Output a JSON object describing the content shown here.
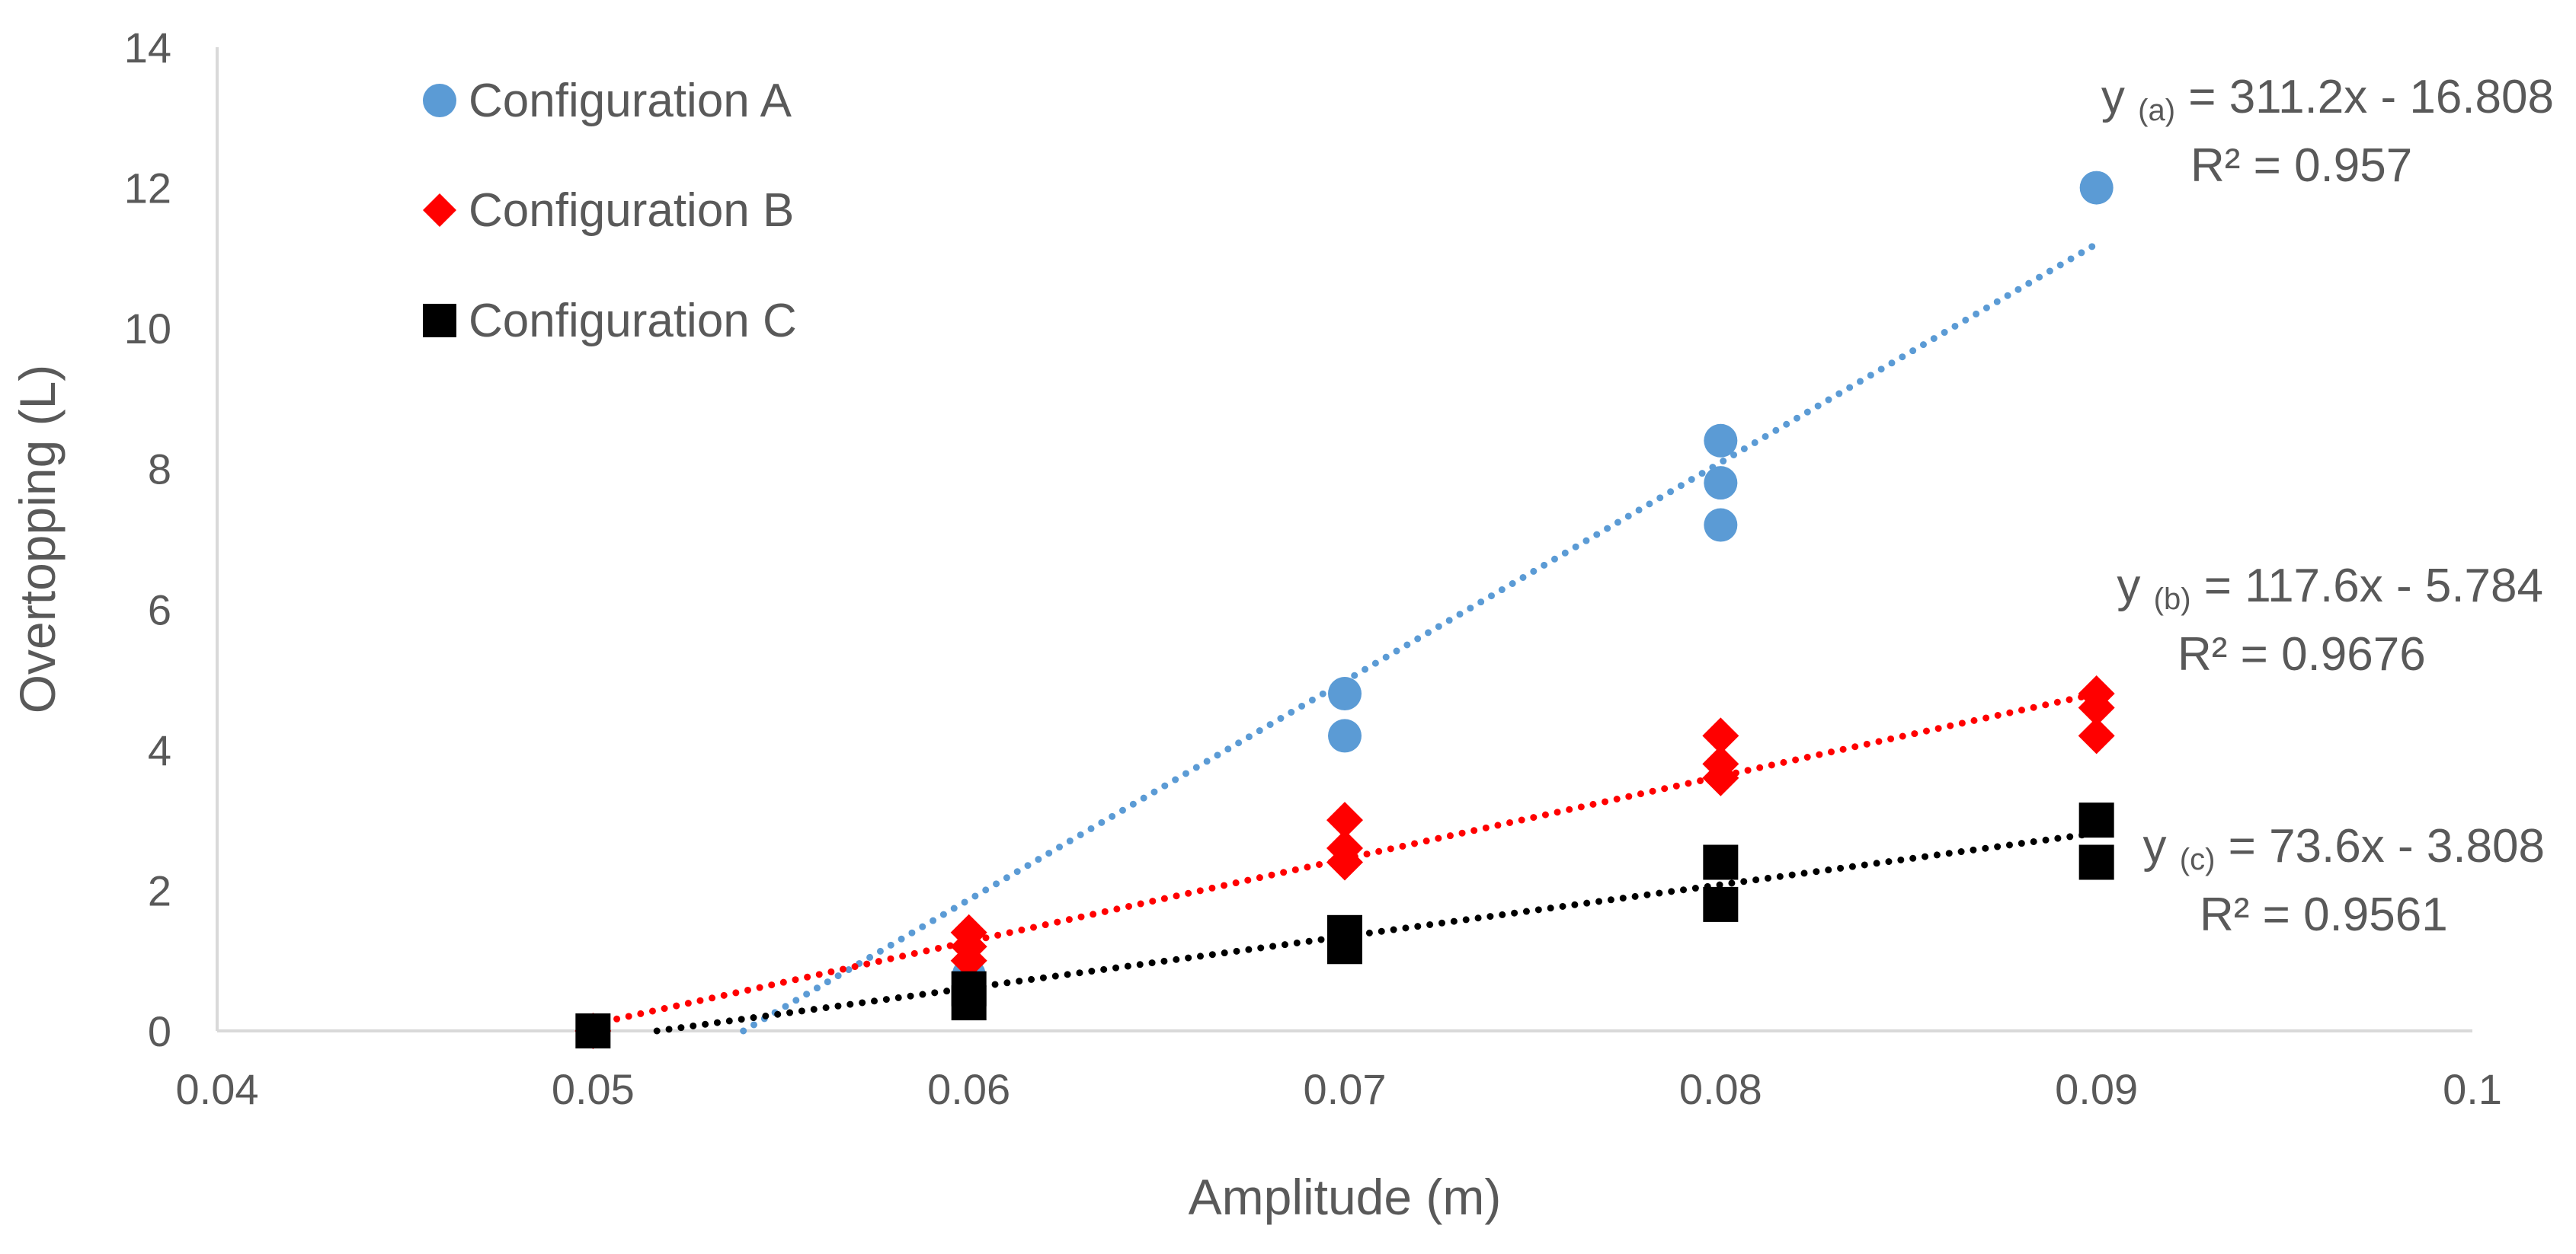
{
  "chart_data": {
    "type": "scatter",
    "title": "",
    "xlabel": "Amplitude (m)",
    "ylabel": "Overtopping (L)",
    "xlim": [
      0.04,
      0.1
    ],
    "ylim": [
      0,
      14
    ],
    "xticks": [
      0.04,
      0.05,
      0.06,
      0.07,
      0.08,
      0.09,
      0.1
    ],
    "xtick_labels": [
      "0.04",
      "0.05",
      "0.06",
      "0.07",
      "0.08",
      "0.09",
      "0.1"
    ],
    "yticks": [
      0,
      2,
      4,
      6,
      8,
      10,
      12,
      14
    ],
    "ytick_labels": [
      "0",
      "2",
      "4",
      "6",
      "8",
      "10",
      "12",
      "14"
    ],
    "grid": false,
    "legend_position": "top-left",
    "series": [
      {
        "name": "Configuration A",
        "marker": "circle",
        "color": "#5b9bd5",
        "points": [
          {
            "x": 0.05,
            "y": 0
          },
          {
            "x": 0.06,
            "y": 0.8
          },
          {
            "x": 0.06,
            "y": 0.6
          },
          {
            "x": 0.07,
            "y": 4.8
          },
          {
            "x": 0.07,
            "y": 4.2
          },
          {
            "x": 0.08,
            "y": 8.4
          },
          {
            "x": 0.08,
            "y": 7.8
          },
          {
            "x": 0.08,
            "y": 7.2
          },
          {
            "x": 0.09,
            "y": 12
          }
        ],
        "trendline": {
          "slope": 311.2,
          "intercept": -16.808,
          "x_range": [
            0.054,
            0.09
          ],
          "equation_label": "y",
          "equation_subscript": "(a)",
          "equation_rest": " = 311.2x - 16.808",
          "r2_label": "R² = 0.957"
        }
      },
      {
        "name": "Configuration B",
        "marker": "diamond",
        "color": "#ff0000",
        "points": [
          {
            "x": 0.05,
            "y": 0
          },
          {
            "x": 0.06,
            "y": 1.4
          },
          {
            "x": 0.06,
            "y": 1.2
          },
          {
            "x": 0.06,
            "y": 1.0
          },
          {
            "x": 0.07,
            "y": 3.0
          },
          {
            "x": 0.07,
            "y": 2.6
          },
          {
            "x": 0.07,
            "y": 2.4
          },
          {
            "x": 0.08,
            "y": 4.2
          },
          {
            "x": 0.08,
            "y": 3.8
          },
          {
            "x": 0.08,
            "y": 3.6
          },
          {
            "x": 0.09,
            "y": 4.8
          },
          {
            "x": 0.09,
            "y": 4.6
          },
          {
            "x": 0.09,
            "y": 4.2
          }
        ],
        "trendline": {
          "slope": 117.6,
          "intercept": -5.784,
          "x_range": [
            0.05,
            0.09
          ],
          "equation_label": "y",
          "equation_subscript": "(b)",
          "equation_rest": " = 117.6x - 5.784",
          "r2_label": "R² = 0.9676"
        }
      },
      {
        "name": "Configuration C",
        "marker": "square",
        "color": "#000000",
        "points": [
          {
            "x": 0.05,
            "y": 0
          },
          {
            "x": 0.06,
            "y": 0.6
          },
          {
            "x": 0.06,
            "y": 0.4
          },
          {
            "x": 0.07,
            "y": 1.4
          },
          {
            "x": 0.07,
            "y": 1.2
          },
          {
            "x": 0.08,
            "y": 2.4
          },
          {
            "x": 0.08,
            "y": 1.8
          },
          {
            "x": 0.09,
            "y": 3.0
          },
          {
            "x": 0.09,
            "y": 2.4
          }
        ],
        "trendline": {
          "slope": 73.6,
          "intercept": -3.808,
          "x_range": [
            0.0517,
            0.09
          ],
          "equation_label": "y",
          "equation_subscript": "(c)",
          "equation_rest": " = 73.6x - 3.808",
          "r2_label": "R² = 0.9561"
        }
      }
    ]
  }
}
